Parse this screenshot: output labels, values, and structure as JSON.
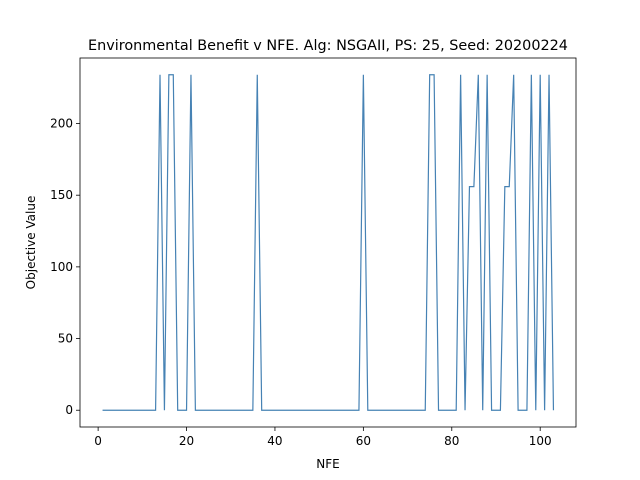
{
  "chart_data": {
    "type": "line",
    "title": "Environmental Benefit v NFE. Alg: NSGAII, PS: 25, Seed: 20200224",
    "xlabel": "NFE",
    "ylabel": "Objective Value",
    "xlim": [
      -4.1,
      108.1
    ],
    "ylim": [
      -11.7,
      245.7
    ],
    "xticks": [
      0,
      20,
      40,
      60,
      80,
      100
    ],
    "yticks": [
      0,
      50,
      100,
      150,
      200
    ],
    "grid": false,
    "legend": "none",
    "series": [
      {
        "color": "#4682b4",
        "x": [
          1,
          13,
          14,
          15,
          16,
          17,
          18,
          20,
          21,
          22,
          35,
          36,
          37,
          59,
          60,
          61,
          74,
          75,
          76,
          77,
          81,
          82,
          83,
          84,
          85,
          86,
          87,
          88,
          89,
          91,
          92,
          93,
          94,
          95,
          97,
          98,
          99,
          100,
          101,
          102,
          103
        ],
        "y": [
          0,
          0,
          234,
          0,
          234,
          234,
          0,
          0,
          234,
          0,
          0,
          234,
          0,
          0,
          234,
          0,
          0,
          234,
          234,
          0,
          0,
          234,
          0,
          156,
          156,
          234,
          0,
          234,
          0,
          0,
          156,
          156,
          234,
          0,
          0,
          234,
          0,
          234,
          0,
          234,
          0
        ]
      }
    ]
  }
}
